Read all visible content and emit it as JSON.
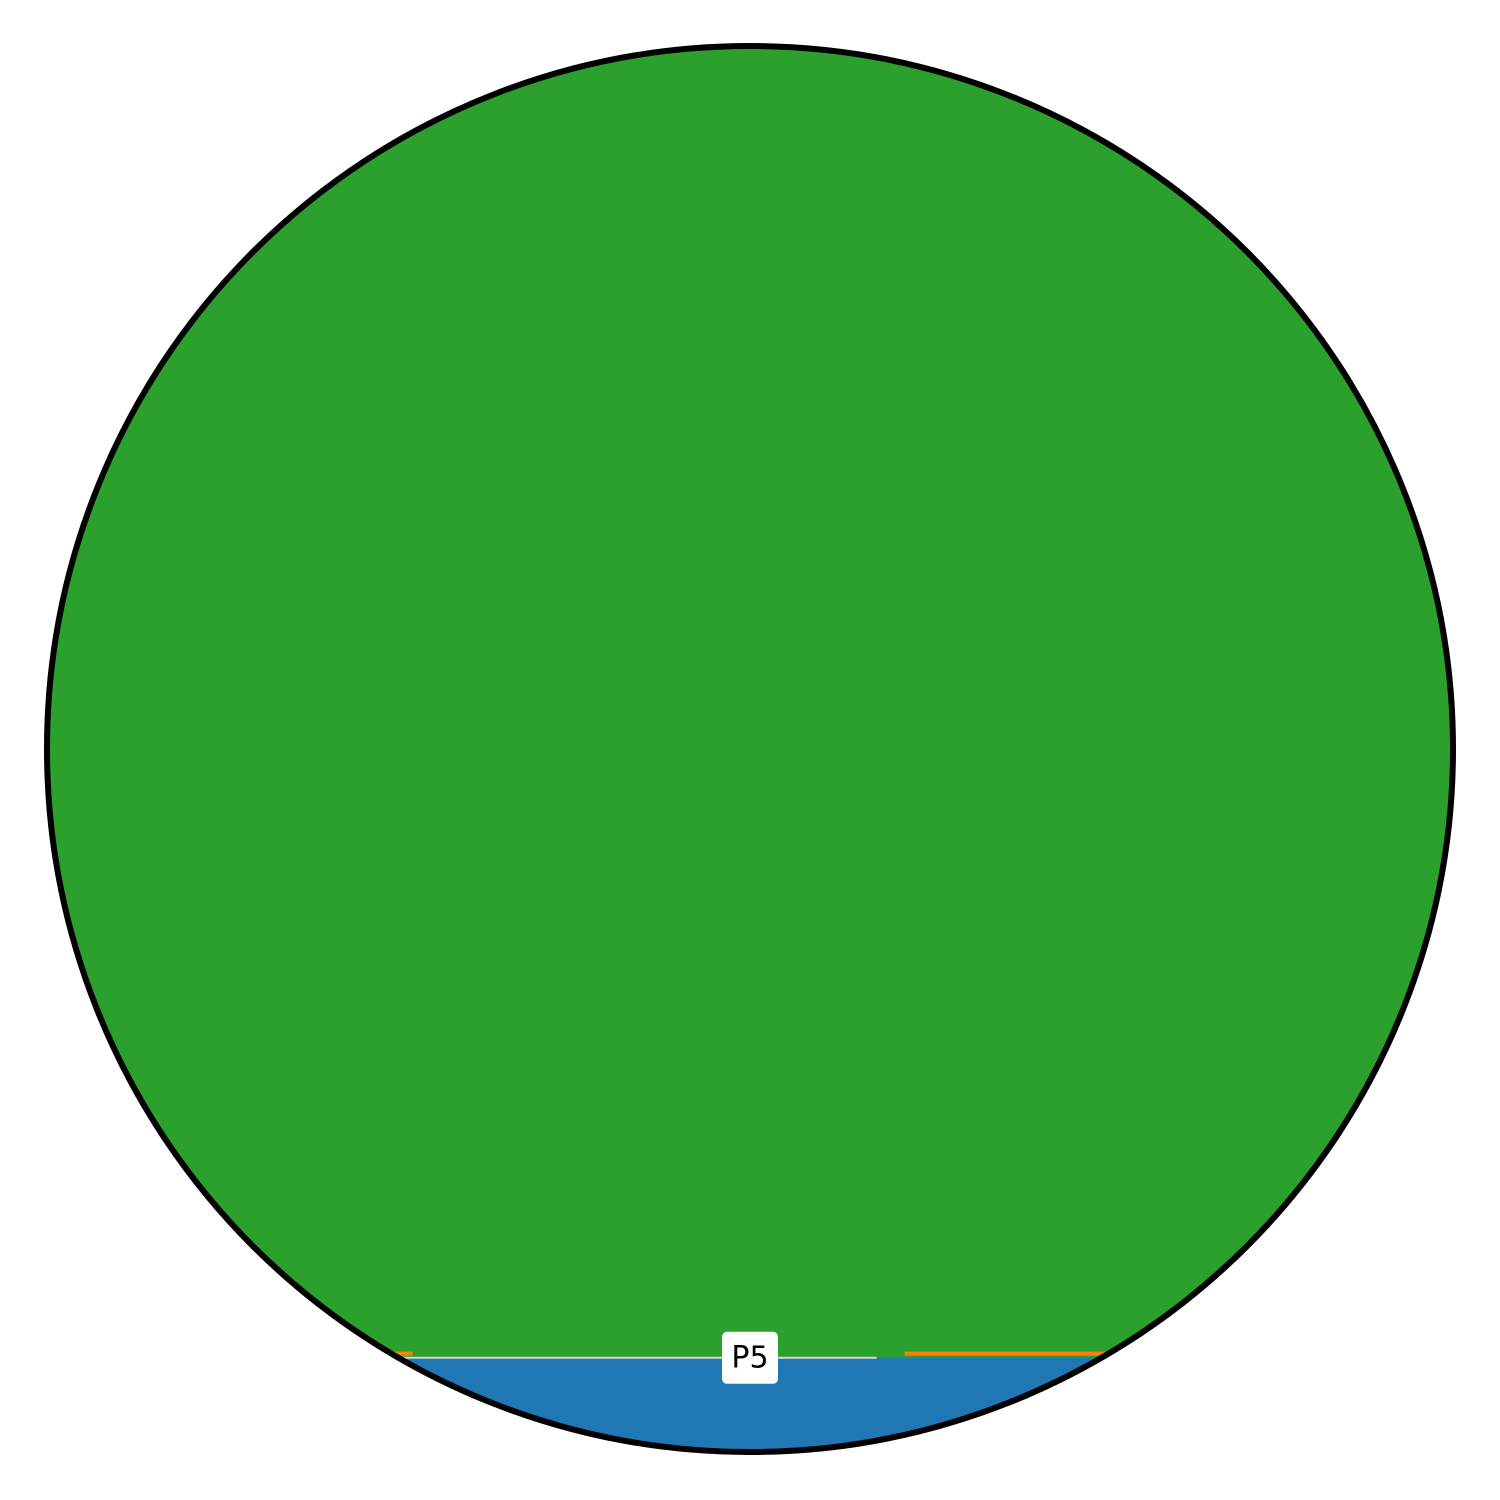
{
  "chart_data": {
    "type": "area",
    "shape": "circle",
    "series": [
      {
        "label": "P5",
        "level": 0.067,
        "color": "#1f77b4"
      }
    ],
    "edge_lines": [
      {
        "color": "#ff7f0e",
        "level": 0.07,
        "x_range": [
          0.61,
          0.8
        ]
      },
      {
        "color": "#ff7f0e",
        "level": 0.07,
        "x_range": [
          0.24,
          0.26
        ]
      }
    ],
    "background_color": "#2ca02c",
    "outline_color": "#000000",
    "grid": false
  }
}
